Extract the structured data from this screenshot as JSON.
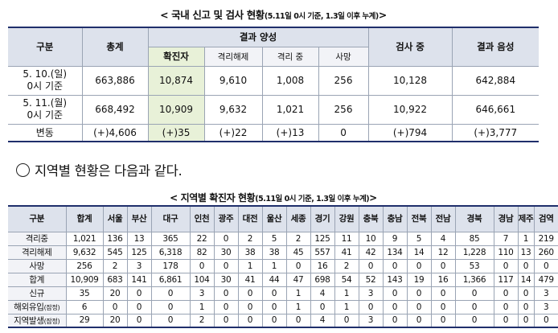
{
  "top_caption": {
    "main": "< 국내 신고 및 검사 현황",
    "note": "(5.11일 0시 기준, 1.3일 이후 누계)",
    "end": ">"
  },
  "t1": {
    "h_group": "구분",
    "h_total": "총계",
    "h_result": "결과 양성",
    "h_confirmed": "확진자",
    "h_released": "격리해제",
    "h_isolated": "격리 중",
    "h_death": "사망",
    "h_testing": "검사 중",
    "h_negative": "결과 음성",
    "rows": [
      {
        "label1": "5. 10.(일)",
        "label2": "0시 기준",
        "total": "663,886",
        "confirmed": "10,874",
        "released": "9,610",
        "isolated": "1,008",
        "death": "256",
        "testing": "10,128",
        "negative": "642,884"
      },
      {
        "label1": "5. 11.(월)",
        "label2": "0시 기준",
        "total": "668,492",
        "confirmed": "10,909",
        "released": "9,632",
        "isolated": "1,021",
        "death": "256",
        "testing": "10,922",
        "negative": "646,661"
      },
      {
        "label1": "변동",
        "label2": "",
        "total": "(+)4,606",
        "confirmed": "(+)35",
        "released": "(+)22",
        "isolated": "(+)13",
        "death": "0",
        "testing": "(+)794",
        "negative": "(+)3,777"
      }
    ]
  },
  "bullet_text": "지역별 현황은 다음과 같다.",
  "bottom_caption": {
    "main": "< 지역별 확진자 현황",
    "note": "(5.11일 0시 기준, 1.3일 이후 누계)",
    "end": ">"
  },
  "t2": {
    "headers": [
      "구분",
      "합계",
      "서울",
      "부산",
      "대구",
      "인천",
      "광주",
      "대전",
      "울산",
      "세종",
      "경기",
      "강원",
      "충북",
      "충남",
      "전북",
      "전남",
      "경북",
      "경남",
      "제주",
      "검역"
    ],
    "rows": [
      {
        "label": "격리중",
        "note": "",
        "cells": [
          "1,021",
          "136",
          "13",
          "365",
          "22",
          "0",
          "2",
          "5",
          "2",
          "125",
          "11",
          "10",
          "9",
          "5",
          "4",
          "85",
          "7",
          "1",
          "219"
        ]
      },
      {
        "label": "격리해제",
        "note": "",
        "cells": [
          "9,632",
          "545",
          "125",
          "6,318",
          "82",
          "30",
          "38",
          "38",
          "45",
          "557",
          "41",
          "42",
          "134",
          "14",
          "12",
          "1,228",
          "110",
          "13",
          "260"
        ]
      },
      {
        "label": "사망",
        "note": "",
        "cells": [
          "256",
          "2",
          "3",
          "178",
          "0",
          "0",
          "1",
          "1",
          "0",
          "16",
          "2",
          "0",
          "0",
          "0",
          "0",
          "53",
          "0",
          "0",
          "0"
        ]
      },
      {
        "label": "합계",
        "note": "",
        "cells": [
          "10,909",
          "683",
          "141",
          "6,861",
          "104",
          "30",
          "41",
          "44",
          "47",
          "698",
          "54",
          "52",
          "143",
          "19",
          "16",
          "1,366",
          "117",
          "14",
          "479"
        ]
      },
      {
        "label": "신규",
        "note": "",
        "cells": [
          "35",
          "20",
          "0",
          "0",
          "3",
          "0",
          "0",
          "0",
          "1",
          "4",
          "1",
          "3",
          "0",
          "0",
          "0",
          "0",
          "0",
          "0",
          "3"
        ]
      },
      {
        "label": "해외유입",
        "note": "(잠정)",
        "cells": [
          "6",
          "0",
          "0",
          "0",
          "1",
          "0",
          "0",
          "0",
          "1",
          "0",
          "1",
          "0",
          "0",
          "0",
          "0",
          "0",
          "0",
          "0",
          "3"
        ]
      },
      {
        "label": "지역발생",
        "note": "(잠정)",
        "cells": [
          "29",
          "20",
          "0",
          "0",
          "2",
          "0",
          "0",
          "0",
          "0",
          "4",
          "0",
          "3",
          "0",
          "0",
          "0",
          "0",
          "0",
          "0",
          "0"
        ]
      }
    ]
  }
}
